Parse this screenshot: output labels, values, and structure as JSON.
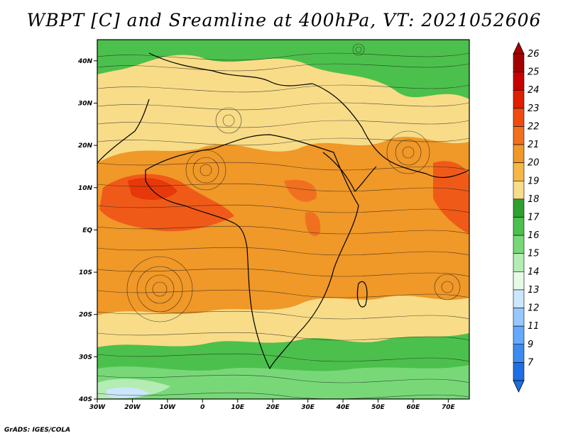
{
  "title": "WBPT [C] and Sreamline at 400hPa, VT: 2021052606",
  "credit": "GrADS: IGES/COLA",
  "map": {
    "lon_range": [
      -30,
      76
    ],
    "lat_range": [
      -40,
      45
    ],
    "lat_ticks": [
      {
        "value": 40,
        "label": "40N"
      },
      {
        "value": 30,
        "label": "30N"
      },
      {
        "value": 20,
        "label": "20N"
      },
      {
        "value": 10,
        "label": "10N"
      },
      {
        "value": 0,
        "label": "EQ"
      },
      {
        "value": -10,
        "label": "10S"
      },
      {
        "value": -20,
        "label": "20S"
      },
      {
        "value": -30,
        "label": "30S"
      },
      {
        "value": -40,
        "label": "40S"
      }
    ],
    "lon_ticks": [
      {
        "value": -30,
        "label": "30W"
      },
      {
        "value": -20,
        "label": "20W"
      },
      {
        "value": -10,
        "label": "10W"
      },
      {
        "value": 0,
        "label": "0"
      },
      {
        "value": 10,
        "label": "10E"
      },
      {
        "value": 20,
        "label": "20E"
      },
      {
        "value": 30,
        "label": "30E"
      },
      {
        "value": 40,
        "label": "40E"
      },
      {
        "value": 50,
        "label": "50E"
      },
      {
        "value": 60,
        "label": "60E"
      },
      {
        "value": 70,
        "label": "70E"
      }
    ]
  },
  "colorbar": {
    "labels": [
      "26",
      "25",
      "24",
      "23",
      "22",
      "21",
      "20",
      "19",
      "18",
      "17",
      "16",
      "15",
      "14",
      "13",
      "12",
      "11",
      "9",
      "7"
    ],
    "colors": [
      "#a50000",
      "#c80000",
      "#e01e00",
      "#f04a10",
      "#f07020",
      "#f09828",
      "#f5b848",
      "#f8dc88",
      "#2ea02e",
      "#4cc04c",
      "#78d878",
      "#b4ecb4",
      "#e6fae6",
      "#cce6ff",
      "#96c8ff",
      "#64aaff",
      "#3c8cf0",
      "#1e6ee6"
    ]
  }
}
